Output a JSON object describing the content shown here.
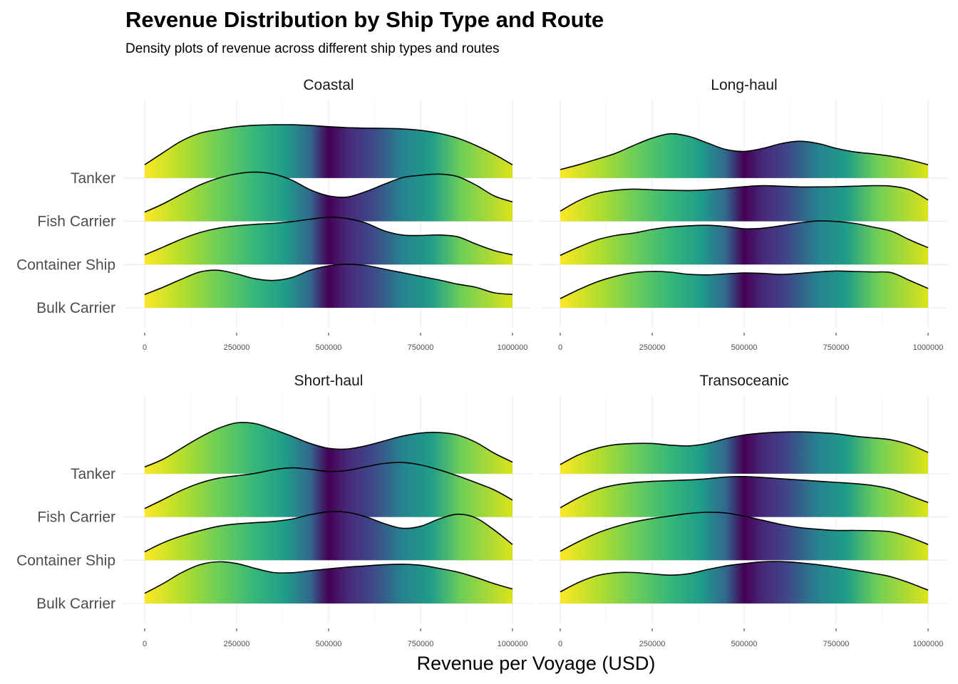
{
  "chart_data": {
    "type": "area",
    "subtype": "ridgeline-density",
    "title": "Revenue Distribution by Ship Type and Route",
    "subtitle": "Density plots of revenue across different ship types and routes",
    "xlabel": "Revenue per Voyage (USD)",
    "ylabel": "",
    "xlim": [
      0,
      1000000
    ],
    "x_ticks": [
      0,
      250000,
      500000,
      750000,
      1000000
    ],
    "x_tick_labels": [
      "0",
      "250000",
      "500000",
      "750000",
      "1000000"
    ],
    "ship_types": [
      "Bulk Carrier",
      "Container Ship",
      "Fish Carrier",
      "Tanker"
    ],
    "fill_palette": "viridis (by x, dark at center)",
    "grid": true,
    "legend": "none",
    "density_x": [
      0,
      50000,
      100000,
      150000,
      200000,
      250000,
      300000,
      350000,
      400000,
      450000,
      500000,
      550000,
      600000,
      650000,
      700000,
      750000,
      800000,
      850000,
      900000,
      950000,
      1000000
    ],
    "panels": [
      {
        "route": "Coastal",
        "series": [
          {
            "name": "Bulk Carrier",
            "density": [
              0.55,
              0.85,
              1.18,
              1.48,
              1.55,
              1.4,
              1.2,
              1.13,
              1.25,
              1.55,
              1.73,
              1.8,
              1.75,
              1.6,
              1.45,
              1.3,
              1.15,
              0.98,
              0.85,
              0.62,
              0.55
            ]
          },
          {
            "name": "Container Ship",
            "density": [
              0.4,
              0.72,
              1.05,
              1.32,
              1.5,
              1.6,
              1.66,
              1.7,
              1.77,
              1.87,
              1.95,
              1.9,
              1.72,
              1.4,
              1.22,
              1.2,
              1.22,
              1.15,
              0.85,
              0.58,
              0.4
            ]
          },
          {
            "name": "Fish Carrier",
            "density": [
              0.38,
              0.72,
              1.12,
              1.5,
              1.78,
              1.96,
              2.03,
              1.95,
              1.7,
              1.3,
              1.05,
              1.0,
              1.22,
              1.52,
              1.8,
              1.9,
              1.95,
              1.85,
              1.5,
              1.05,
              0.8
            ]
          },
          {
            "name": "Tanker",
            "density": [
              0.55,
              1.05,
              1.53,
              1.85,
              2.0,
              2.12,
              2.18,
              2.2,
              2.2,
              2.17,
              2.12,
              2.08,
              2.06,
              2.05,
              2.03,
              1.97,
              1.85,
              1.65,
              1.35,
              0.98,
              0.55
            ]
          }
        ]
      },
      {
        "route": "Long-haul",
        "series": [
          {
            "name": "Bulk Carrier",
            "density": [
              0.38,
              0.75,
              1.07,
              1.3,
              1.45,
              1.5,
              1.47,
              1.38,
              1.36,
              1.4,
              1.44,
              1.42,
              1.38,
              1.42,
              1.48,
              1.52,
              1.5,
              1.48,
              1.45,
              1.13,
              0.8
            ]
          },
          {
            "name": "Container Ship",
            "density": [
              0.38,
              0.72,
              1.02,
              1.2,
              1.3,
              1.45,
              1.55,
              1.6,
              1.62,
              1.57,
              1.48,
              1.5,
              1.6,
              1.72,
              1.8,
              1.78,
              1.7,
              1.55,
              1.38,
              1.02,
              0.7
            ]
          },
          {
            "name": "Fish Carrier",
            "density": [
              0.42,
              0.85,
              1.15,
              1.28,
              1.33,
              1.3,
              1.28,
              1.27,
              1.3,
              1.36,
              1.43,
              1.47,
              1.45,
              1.42,
              1.42,
              1.43,
              1.45,
              1.47,
              1.45,
              1.3,
              0.88
            ]
          },
          {
            "name": "Tanker",
            "density": [
              0.35,
              0.55,
              0.78,
              1.02,
              1.35,
              1.65,
              1.83,
              1.72,
              1.45,
              1.18,
              1.1,
              1.22,
              1.42,
              1.52,
              1.43,
              1.23,
              1.08,
              1.0,
              0.9,
              0.75,
              0.55
            ]
          }
        ]
      },
      {
        "route": "Short-haul",
        "series": [
          {
            "name": "Bulk Carrier",
            "density": [
              0.42,
              0.82,
              1.27,
              1.6,
              1.72,
              1.65,
              1.45,
              1.28,
              1.27,
              1.35,
              1.43,
              1.5,
              1.55,
              1.6,
              1.62,
              1.58,
              1.45,
              1.3,
              1.08,
              0.82,
              0.6
            ]
          },
          {
            "name": "Container Ship",
            "density": [
              0.35,
              0.72,
              1.0,
              1.22,
              1.4,
              1.5,
              1.55,
              1.6,
              1.7,
              1.88,
              2.0,
              1.98,
              1.8,
              1.52,
              1.32,
              1.4,
              1.7,
              1.9,
              1.75,
              1.25,
              0.65
            ]
          },
          {
            "name": "Fish Carrier",
            "density": [
              0.35,
              0.72,
              1.1,
              1.4,
              1.6,
              1.7,
              1.8,
              1.95,
              2.03,
              1.97,
              1.88,
              1.92,
              2.07,
              2.21,
              2.25,
              2.15,
              1.95,
              1.7,
              1.42,
              1.12,
              0.7
            ]
          },
          {
            "name": "Tanker",
            "density": [
              0.28,
              0.6,
              1.05,
              1.5,
              1.87,
              2.1,
              2.07,
              1.83,
              1.55,
              1.25,
              1.05,
              1.02,
              1.15,
              1.35,
              1.55,
              1.68,
              1.7,
              1.6,
              1.3,
              0.85,
              0.48
            ]
          }
        ]
      },
      {
        "route": "Transoceanic",
        "series": [
          {
            "name": "Bulk Carrier",
            "density": [
              0.48,
              0.87,
              1.15,
              1.27,
              1.28,
              1.22,
              1.17,
              1.23,
              1.4,
              1.55,
              1.65,
              1.72,
              1.73,
              1.68,
              1.6,
              1.5,
              1.38,
              1.25,
              1.1,
              0.85,
              0.55
            ]
          },
          {
            "name": "Container Ship",
            "density": [
              0.37,
              0.77,
              1.12,
              1.38,
              1.58,
              1.72,
              1.83,
              1.93,
              1.98,
              1.95,
              1.82,
              1.65,
              1.48,
              1.35,
              1.28,
              1.23,
              1.23,
              1.22,
              1.17,
              0.95,
              0.65
            ]
          },
          {
            "name": "Fish Carrier",
            "density": [
              0.38,
              0.8,
              1.13,
              1.32,
              1.42,
              1.47,
              1.5,
              1.53,
              1.58,
              1.65,
              1.67,
              1.63,
              1.58,
              1.53,
              1.48,
              1.43,
              1.38,
              1.3,
              1.15,
              0.88,
              0.6
            ]
          },
          {
            "name": "Tanker",
            "density": [
              0.38,
              0.78,
              1.05,
              1.2,
              1.25,
              1.25,
              1.18,
              1.15,
              1.25,
              1.45,
              1.6,
              1.68,
              1.72,
              1.73,
              1.7,
              1.65,
              1.55,
              1.48,
              1.4,
              1.2,
              0.88
            ]
          }
        ]
      }
    ]
  }
}
